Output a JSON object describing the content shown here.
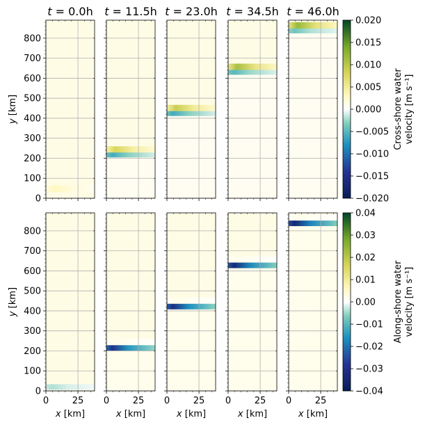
{
  "chart_data": {
    "type": "heatmap",
    "panel_titles": [
      "t = 0.0h",
      "t = 11.5h",
      "t = 23.0h",
      "t = 34.5h",
      "t = 46.0h"
    ],
    "title_parts": [
      {
        "var": "t",
        "rest": " = 0.0h"
      },
      {
        "var": "t",
        "rest": " = 11.5h"
      },
      {
        "var": "t",
        "rest": " = 23.0h"
      },
      {
        "var": "t",
        "rest": " = 34.5h"
      },
      {
        "var": "t",
        "rest": " = 46.0h"
      }
    ],
    "times_h": [
      0.0,
      11.5,
      23.0,
      34.5,
      46.0
    ],
    "xlabel": "x [km]",
    "xlabel_var": "x",
    "xlabel_unit": " [km]",
    "ylabel": "y [km]",
    "ylabel_var": "y",
    "ylabel_unit": " [km]",
    "xlim": [
      0,
      38
    ],
    "ylim": [
      0,
      890
    ],
    "xticks": [
      0,
      25
    ],
    "xticklabels": [
      "0",
      "25"
    ],
    "yticks": [
      0,
      100,
      200,
      300,
      400,
      500,
      600,
      700,
      800
    ],
    "yticklabels": [
      "0",
      "100",
      "200",
      "300",
      "400",
      "500",
      "600",
      "700",
      "800"
    ],
    "grid": true,
    "colormap": "BrBG-like (navy → teal → white → yellow → olive → dark green)",
    "rows": [
      {
        "name": "Cross-shore water velocity",
        "colorbar_label_line1": "Cross-shore water",
        "colorbar_label_line2": "velocity [m s⁻¹]",
        "clim": [
          -0.02,
          0.02
        ],
        "colorbar_ticks": [
          0.02,
          0.015,
          0.01,
          0.005,
          0.0,
          -0.005,
          -0.01,
          -0.015,
          -0.02
        ],
        "colorbar_ticklabels": [
          "0.020",
          "0.015",
          "0.010",
          "0.005",
          "0.000",
          "−0.005",
          "−0.010",
          "−0.015",
          "−0.020"
        ],
        "front_y_km": [
          30,
          225,
          432,
          638,
          845
        ],
        "front_peak_positive": [
          0.003,
          0.008,
          0.009,
          0.011,
          0.012
        ],
        "front_peak_negative": [
          0.0,
          -0.006,
          -0.006,
          -0.005,
          -0.004
        ],
        "background_value": 0.0012
      },
      {
        "name": "Along-shore water velocity",
        "colorbar_label_line1": "Along-shore water",
        "colorbar_label_line2": "velocity [m s⁻¹]",
        "clim": [
          -0.04,
          0.04
        ],
        "colorbar_ticks": [
          0.04,
          0.03,
          0.02,
          0.01,
          0.0,
          -0.01,
          -0.02,
          -0.03,
          -0.04
        ],
        "colorbar_ticklabels": [
          "0.04",
          "0.03",
          "0.02",
          "0.01",
          "0.00",
          "−0.01",
          "−0.02",
          "−0.03",
          "−0.04"
        ],
        "front_y_km": [
          30,
          225,
          432,
          638,
          848
        ],
        "front_peak_positive": [
          0.0,
          0.002,
          0.002,
          0.002,
          0.002
        ],
        "front_peak_negative": [
          -0.004,
          -0.03,
          -0.032,
          -0.034,
          -0.035
        ],
        "background_value": 0.0025
      }
    ]
  }
}
